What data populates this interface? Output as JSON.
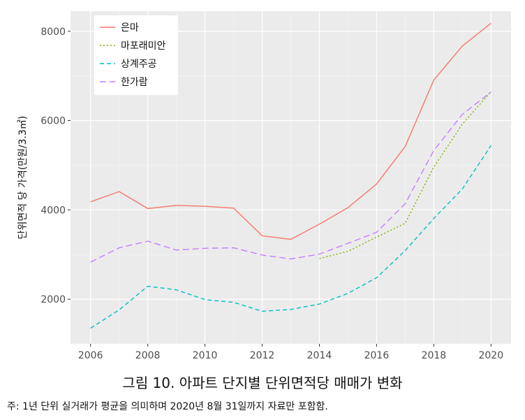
{
  "chart_data": {
    "type": "line",
    "title": "",
    "ylabel": "단위면적 당 가격(만원/3.3㎡)",
    "xlabel": "",
    "xlim": [
      2005.3,
      2020.7
    ],
    "ylim": [
      1000,
      8450
    ],
    "xticks": [
      2006,
      2008,
      2010,
      2012,
      2014,
      2016,
      2018,
      2020
    ],
    "yticks": [
      2000,
      4000,
      6000,
      8000
    ],
    "grid": true,
    "legend_position": "top-left",
    "series": [
      {
        "name": "은마",
        "color": "#F8766D",
        "dash": "solid",
        "x": [
          2006,
          2007,
          2008,
          2009,
          2010,
          2011,
          2012,
          2013,
          2014,
          2015,
          2016,
          2017,
          2018,
          2019,
          2020
        ],
        "y": [
          4180,
          4410,
          4030,
          4100,
          4080,
          4040,
          3420,
          3340,
          3680,
          4050,
          4580,
          5420,
          6910,
          7670,
          8180
        ]
      },
      {
        "name": "마포래미안",
        "color": "#7CAE00",
        "dash": "dotted",
        "x": [
          2014,
          2015,
          2016,
          2017,
          2018,
          2019,
          2020
        ],
        "y": [
          2910,
          3070,
          3390,
          3700,
          4960,
          5920,
          6650
        ]
      },
      {
        "name": "상계주공",
        "color": "#00BFC4",
        "dash": "dashed",
        "x": [
          2006,
          2007,
          2008,
          2009,
          2010,
          2011,
          2012,
          2013,
          2014,
          2015,
          2016,
          2017,
          2018,
          2019,
          2020
        ],
        "y": [
          1350,
          1760,
          2290,
          2210,
          1990,
          1930,
          1730,
          1770,
          1890,
          2130,
          2480,
          3090,
          3810,
          4470,
          5440
        ]
      },
      {
        "name": "한가람",
        "color": "#C77CFF",
        "dash": "longdash",
        "x": [
          2006,
          2007,
          2008,
          2009,
          2010,
          2011,
          2012,
          2013,
          2014,
          2015,
          2016,
          2017,
          2018,
          2019,
          2020
        ],
        "y": [
          2830,
          3150,
          3300,
          3100,
          3140,
          3150,
          2990,
          2900,
          3010,
          3250,
          3500,
          4140,
          5330,
          6140,
          6640
        ]
      }
    ]
  },
  "caption": "그림 10. 아파트 단지별 단위면적당 매매가 변화",
  "note": "주: 1년 단위 실거래가 평균을 의미하며 2020년 8월 31일까지 자료만 포함함."
}
